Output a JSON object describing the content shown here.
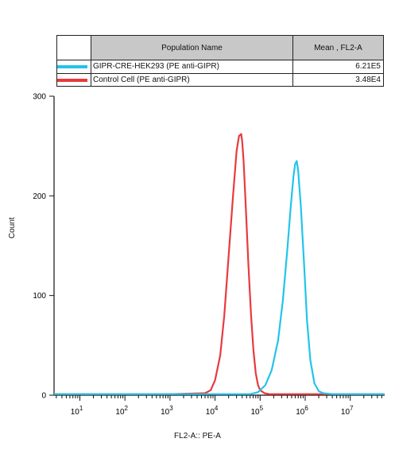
{
  "legend": {
    "header_name": "Population Name",
    "header_mean": "Mean , FL2-A",
    "rows": [
      {
        "name": "GIPR-CRE-HEK293  (PE anti-GIPR)",
        "mean": "6.21E5",
        "color": "#22c4ea"
      },
      {
        "name": "Control Cell (PE anti-GIPR)",
        "mean": "3.48E4",
        "color": "#e83a3e"
      }
    ]
  },
  "chart_data": {
    "type": "line",
    "xlabel": "FL2-A:: PE-A",
    "ylabel": "Count",
    "x_scale": "log",
    "xlim": [
      1,
      100000000
    ],
    "ylim": [
      0,
      300
    ],
    "x_ticks": [
      {
        "base": "10",
        "exp": "1"
      },
      {
        "base": "10",
        "exp": "2"
      },
      {
        "base": "10",
        "exp": "3"
      },
      {
        "base": "10",
        "exp": "4"
      },
      {
        "base": "10",
        "exp": "5"
      },
      {
        "base": "10",
        "exp": "6"
      },
      {
        "base": "10",
        "exp": "7"
      }
    ],
    "y_ticks": [
      "0",
      "100",
      "200",
      "300"
    ],
    "series": [
      {
        "name": "Control Cell (PE anti-GIPR)",
        "color": "#e83a3e",
        "x": [
          1,
          1000,
          6000,
          8000,
          10000,
          13000,
          16000,
          20000,
          25000,
          30000,
          34000,
          38000,
          40000,
          43000,
          48000,
          55000,
          63000,
          71000,
          80000,
          90000,
          100000,
          125000,
          160000,
          100000000
        ],
        "y": [
          1,
          1,
          2,
          5,
          15,
          40,
          80,
          140,
          200,
          245,
          260,
          262,
          255,
          235,
          190,
          130,
          80,
          45,
          22,
          10,
          5,
          2,
          1,
          1
        ]
      },
      {
        "name": "GIPR-CRE-HEK293  (PE anti-GIPR)",
        "color": "#22c4ea",
        "x": [
          1,
          60000,
          90000,
          130000,
          180000,
          250000,
          320000,
          400000,
          480000,
          550000,
          600000,
          650000,
          700000,
          800000,
          950000,
          1100000,
          1300000,
          1600000,
          2000000,
          2500000,
          4000000,
          100000000
        ],
        "y": [
          1,
          1,
          3,
          10,
          25,
          55,
          95,
          145,
          190,
          220,
          232,
          235,
          225,
          190,
          130,
          75,
          35,
          12,
          4,
          2,
          1,
          1
        ]
      }
    ]
  }
}
